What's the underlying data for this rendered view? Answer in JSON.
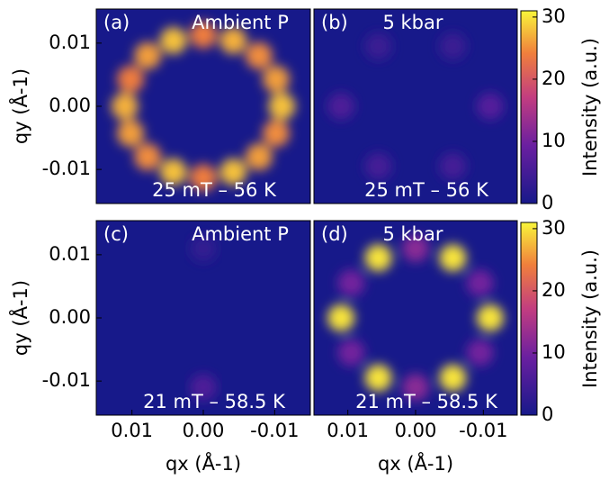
{
  "chart_data": [
    {
      "type": "heatmap",
      "panel_label": "(a)",
      "label": "Ambient P",
      "condition": "25 mT – 56 K",
      "xlim": [
        0.015,
        -0.015
      ],
      "ylim": [
        -0.0154,
        0.0154
      ],
      "yticks": [
        0.01,
        {
          "value": 0,
          "label": "0.00"
        },
        -0.01
      ],
      "ylabel": "qy (Å-1)",
      "x": [
        0.011,
        0.0102,
        0.0078,
        0.0042,
        0,
        -0.0042,
        -0.0078,
        -0.0102,
        -0.011,
        -0.0102,
        -0.0078,
        -0.0042,
        0,
        0.0042,
        0.0078,
        0.0102
      ],
      "y": [
        0,
        0.0043,
        0.008,
        0.0104,
        0.0113,
        0.0104,
        0.008,
        0.0043,
        0,
        -0.0043,
        -0.008,
        -0.0104,
        -0.0113,
        -0.0104,
        -0.008,
        -0.0043
      ],
      "values": [
        27,
        24,
        26,
        28,
        24,
        27,
        25,
        26,
        28,
        25,
        26,
        28,
        24,
        28,
        25,
        26
      ]
    },
    {
      "type": "heatmap",
      "panel_label": "(b)",
      "label": "5 kbar",
      "condition": "25 mT – 56 K",
      "xlim": [
        0.015,
        -0.015
      ],
      "ylim": [
        -0.0154,
        0.0154
      ],
      "x": [
        0.011,
        0.0055,
        -0.0055,
        -0.011,
        -0.0055,
        0.0055
      ],
      "y": [
        0,
        0.0095,
        0.0095,
        0,
        -0.0095,
        -0.0095
      ],
      "values": [
        6,
        4,
        4,
        7,
        5,
        5
      ],
      "colorbar": {
        "label": "Intensity (a.u.)",
        "lim": [
          0,
          31
        ],
        "ticks": [
          0,
          10,
          20,
          30
        ]
      }
    },
    {
      "type": "heatmap",
      "panel_label": "(c)",
      "label": "Ambient P",
      "condition": "21 mT – 58.5 K",
      "xlim": [
        0.015,
        -0.015
      ],
      "ylim": [
        -0.0154,
        0.0154
      ],
      "xticks": [
        0.01,
        {
          "value": 0,
          "label": "0.00"
        },
        -0.01
      ],
      "xlabel": "qx (Å-1)",
      "yticks": [
        0.01,
        {
          "value": 0,
          "label": "0.00"
        },
        -0.01
      ],
      "ylabel": "qy (Å-1)",
      "x": [
        0,
        0
      ],
      "y": [
        -0.011,
        0.011
      ],
      "values": [
        6,
        3
      ]
    },
    {
      "type": "heatmap",
      "panel_label": "(d)",
      "label": "5 kbar",
      "condition": "21 mT – 58.5 K",
      "xlim": [
        0.015,
        -0.015
      ],
      "ylim": [
        -0.0154,
        0.0154
      ],
      "xticks": [
        0.01,
        {
          "value": 0,
          "label": "0.00"
        },
        -0.01
      ],
      "xlabel": "qx (Å-1)",
      "x": [
        0.011,
        0.0055,
        -0.0055,
        -0.011,
        -0.0055,
        0.0055,
        0.0095,
        0,
        -0.0095,
        -0.0095,
        0,
        0.0095
      ],
      "y": [
        0,
        0.0095,
        0.0095,
        0,
        -0.0095,
        -0.0095,
        0.0055,
        0.011,
        0.0055,
        -0.0055,
        -0.011,
        -0.0055
      ],
      "values": [
        30,
        30,
        30,
        30,
        30,
        30,
        10,
        12,
        10,
        10,
        12,
        10
      ],
      "colorbar": {
        "label": "Intensity (a.u.)",
        "lim": [
          0,
          31
        ],
        "ticks": [
          0,
          10,
          20,
          30
        ]
      }
    }
  ]
}
